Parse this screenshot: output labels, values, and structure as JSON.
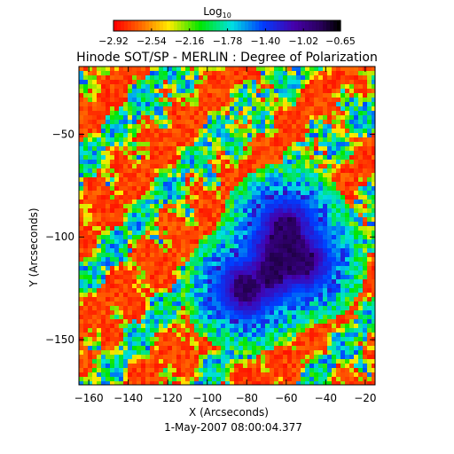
{
  "chart_data": {
    "type": "heatmap",
    "title": "Hinode SOT/SP - MERLIN : Degree of Polarization",
    "xlabel": "X (Arcseconds)",
    "ylabel": "Y (Arcseconds)",
    "subtitle": "1-May-2007 08:00:04.377",
    "colorbar": {
      "title": "Log",
      "title_subscript": "10",
      "ticks": [
        -2.92,
        -2.54,
        -2.16,
        -1.78,
        -1.4,
        -1.02,
        -0.65
      ],
      "tick_labels": [
        "−2.92",
        "−2.54",
        "−2.16",
        "−1.78",
        "−1.40",
        "−1.02",
        "−0.65"
      ],
      "range": [
        -2.92,
        -0.65
      ],
      "colormap": "rainbow (red → yellow → green → cyan → blue → violet → black)"
    },
    "xlim": [
      -165,
      -15
    ],
    "ylim": [
      -172,
      -17
    ],
    "x_ticks": [
      -160,
      -140,
      -120,
      -100,
      -80,
      -60,
      -40,
      -20
    ],
    "x_tick_labels": [
      "−160",
      "−140",
      "−120",
      "−100",
      "−80",
      "−60",
      "−40",
      "−20"
    ],
    "y_ticks": [
      -150,
      -100,
      -50
    ],
    "y_tick_labels": [
      "−150",
      "−100",
      "−50"
    ],
    "features": {
      "sunspot_center": [
        -60,
        -108
      ],
      "sunspot_core_radius": 11,
      "sunspot_penumbra_radius": 22,
      "umbral_blobs": [
        [
          -60,
          -96
        ],
        [
          -68,
          -118
        ],
        [
          -52,
          -112
        ],
        [
          -80,
          -125
        ]
      ]
    }
  }
}
